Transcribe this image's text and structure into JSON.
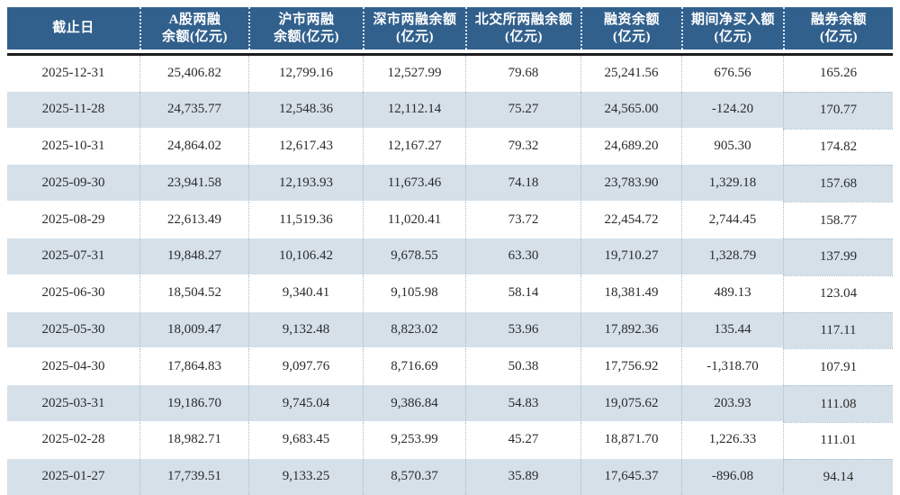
{
  "theme": {
    "header_bg": "#31608d",
    "header_text": "#ffffff",
    "row_alt_bg": "#d5e0e9",
    "body_text": "#2b2b2b",
    "rule_color": "#1c1c1c",
    "dotted_color": "#a5bdcf"
  },
  "table": {
    "headers": [
      {
        "id": "date",
        "label": "截止日"
      },
      {
        "id": "a_share_margin",
        "label": "A股两融\n余额(亿元)"
      },
      {
        "id": "sh_margin",
        "label": "沪市两融\n余额(亿元)"
      },
      {
        "id": "sz_margin",
        "label": "深市两融余额\n(亿元)"
      },
      {
        "id": "bse_margin",
        "label": "北交所两融余额\n(亿元)"
      },
      {
        "id": "financing",
        "label": "融资余额\n(亿元)"
      },
      {
        "id": "net_buy",
        "label": "期间净买入额\n(亿元)"
      },
      {
        "id": "sec_lending",
        "label": "融券余额\n(亿元)"
      }
    ],
    "rows": [
      [
        "2025-12-31",
        "25,406.82",
        "12,799.16",
        "12,527.99",
        "79.68",
        "25,241.56",
        "676.56",
        "165.26"
      ],
      [
        "2025-11-28",
        "24,735.77",
        "12,548.36",
        "12,112.14",
        "75.27",
        "24,565.00",
        "-124.20",
        "170.77"
      ],
      [
        "2025-10-31",
        "24,864.02",
        "12,617.43",
        "12,167.27",
        "79.32",
        "24,689.20",
        "905.30",
        "174.82"
      ],
      [
        "2025-09-30",
        "23,941.58",
        "12,193.93",
        "11,673.46",
        "74.18",
        "23,783.90",
        "1,329.18",
        "157.68"
      ],
      [
        "2025-08-29",
        "22,613.49",
        "11,519.36",
        "11,020.41",
        "73.72",
        "22,454.72",
        "2,744.45",
        "158.77"
      ],
      [
        "2025-07-31",
        "19,848.27",
        "10,106.42",
        "9,678.55",
        "63.30",
        "19,710.27",
        "1,328.79",
        "137.99"
      ],
      [
        "2025-06-30",
        "18,504.52",
        "9,340.41",
        "9,105.98",
        "58.14",
        "18,381.49",
        "489.13",
        "123.04"
      ],
      [
        "2025-05-30",
        "18,009.47",
        "9,132.48",
        "8,823.02",
        "53.96",
        "17,892.36",
        "135.44",
        "117.11"
      ],
      [
        "2025-04-30",
        "17,864.83",
        "9,097.76",
        "8,716.69",
        "50.38",
        "17,756.92",
        "-1,318.70",
        "107.91"
      ],
      [
        "2025-03-31",
        "19,186.70",
        "9,745.04",
        "9,386.84",
        "54.83",
        "19,075.62",
        "203.93",
        "111.08"
      ],
      [
        "2025-02-28",
        "18,982.71",
        "9,683.45",
        "9,253.99",
        "45.27",
        "18,871.70",
        "1,226.33",
        "111.01"
      ],
      [
        "2025-01-27",
        "17,739.51",
        "9,133.25",
        "8,570.37",
        "35.89",
        "17,645.37",
        "-896.08",
        "94.14"
      ]
    ]
  }
}
